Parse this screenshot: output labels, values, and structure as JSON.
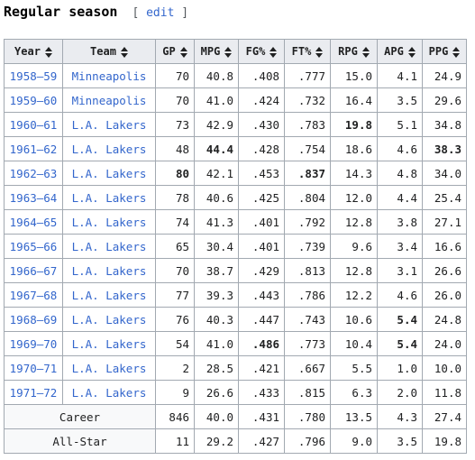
{
  "section": {
    "title": "Regular season",
    "edit_open": "[ ",
    "edit_label": "edit",
    "edit_close": " ]"
  },
  "columns": [
    "Year",
    "Team",
    "GP",
    "MPG",
    "FG%",
    "FT%",
    "RPG",
    "APG",
    "PPG"
  ],
  "rows": [
    {
      "year": "1958–59",
      "team": "Minneapolis",
      "gp": "70",
      "mpg": "40.8",
      "fg": ".408",
      "ft": ".777",
      "rpg": "15.0",
      "apg": "4.1",
      "ppg": "24.9",
      "bold": []
    },
    {
      "year": "1959–60",
      "team": "Minneapolis",
      "gp": "70",
      "mpg": "41.0",
      "fg": ".424",
      "ft": ".732",
      "rpg": "16.4",
      "apg": "3.5",
      "ppg": "29.6",
      "bold": []
    },
    {
      "year": "1960–61",
      "team": "L.A. Lakers",
      "gp": "73",
      "mpg": "42.9",
      "fg": ".430",
      "ft": ".783",
      "rpg": "19.8",
      "apg": "5.1",
      "ppg": "34.8",
      "bold": [
        "rpg"
      ]
    },
    {
      "year": "1961–62",
      "team": "L.A. Lakers",
      "gp": "48",
      "mpg": "44.4",
      "fg": ".428",
      "ft": ".754",
      "rpg": "18.6",
      "apg": "4.6",
      "ppg": "38.3",
      "bold": [
        "mpg",
        "ppg"
      ]
    },
    {
      "year": "1962–63",
      "team": "L.A. Lakers",
      "gp": "80",
      "mpg": "42.1",
      "fg": ".453",
      "ft": ".837",
      "rpg": "14.3",
      "apg": "4.8",
      "ppg": "34.0",
      "bold": [
        "gp",
        "ft"
      ]
    },
    {
      "year": "1963–64",
      "team": "L.A. Lakers",
      "gp": "78",
      "mpg": "40.6",
      "fg": ".425",
      "ft": ".804",
      "rpg": "12.0",
      "apg": "4.4",
      "ppg": "25.4",
      "bold": []
    },
    {
      "year": "1964–65",
      "team": "L.A. Lakers",
      "gp": "74",
      "mpg": "41.3",
      "fg": ".401",
      "ft": ".792",
      "rpg": "12.8",
      "apg": "3.8",
      "ppg": "27.1",
      "bold": []
    },
    {
      "year": "1965–66",
      "team": "L.A. Lakers",
      "gp": "65",
      "mpg": "30.4",
      "fg": ".401",
      "ft": ".739",
      "rpg": "9.6",
      "apg": "3.4",
      "ppg": "16.6",
      "bold": []
    },
    {
      "year": "1966–67",
      "team": "L.A. Lakers",
      "gp": "70",
      "mpg": "38.7",
      "fg": ".429",
      "ft": ".813",
      "rpg": "12.8",
      "apg": "3.1",
      "ppg": "26.6",
      "bold": []
    },
    {
      "year": "1967–68",
      "team": "L.A. Lakers",
      "gp": "77",
      "mpg": "39.3",
      "fg": ".443",
      "ft": ".786",
      "rpg": "12.2",
      "apg": "4.6",
      "ppg": "26.0",
      "bold": []
    },
    {
      "year": "1968–69",
      "team": "L.A. Lakers",
      "gp": "76",
      "mpg": "40.3",
      "fg": ".447",
      "ft": ".743",
      "rpg": "10.6",
      "apg": "5.4",
      "ppg": "24.8",
      "bold": [
        "apg"
      ]
    },
    {
      "year": "1969–70",
      "team": "L.A. Lakers",
      "gp": "54",
      "mpg": "41.0",
      "fg": ".486",
      "ft": ".773",
      "rpg": "10.4",
      "apg": "5.4",
      "ppg": "24.0",
      "bold": [
        "fg",
        "apg"
      ]
    },
    {
      "year": "1970–71",
      "team": "L.A. Lakers",
      "gp": "2",
      "mpg": "28.5",
      "fg": ".421",
      "ft": ".667",
      "rpg": "5.5",
      "apg": "1.0",
      "ppg": "10.0",
      "bold": []
    },
    {
      "year": "1971–72",
      "team": "L.A. Lakers",
      "gp": "9",
      "mpg": "26.6",
      "fg": ".433",
      "ft": ".815",
      "rpg": "6.3",
      "apg": "2.0",
      "ppg": "11.8",
      "bold": []
    }
  ],
  "summary_rows": [
    {
      "label": "Career",
      "gp": "846",
      "mpg": "40.0",
      "fg": ".431",
      "ft": ".780",
      "rpg": "13.5",
      "apg": "4.3",
      "ppg": "27.4"
    },
    {
      "label": "All-Star",
      "gp": "11",
      "mpg": "29.2",
      "fg": ".427",
      "ft": ".796",
      "rpg": "9.0",
      "apg": "3.5",
      "ppg": "19.8"
    }
  ],
  "colors": {
    "link": "#3366cc",
    "header_bg": "#eaecf0",
    "border": "#a2a9b1",
    "summary_bg": "#f8f9fa"
  }
}
